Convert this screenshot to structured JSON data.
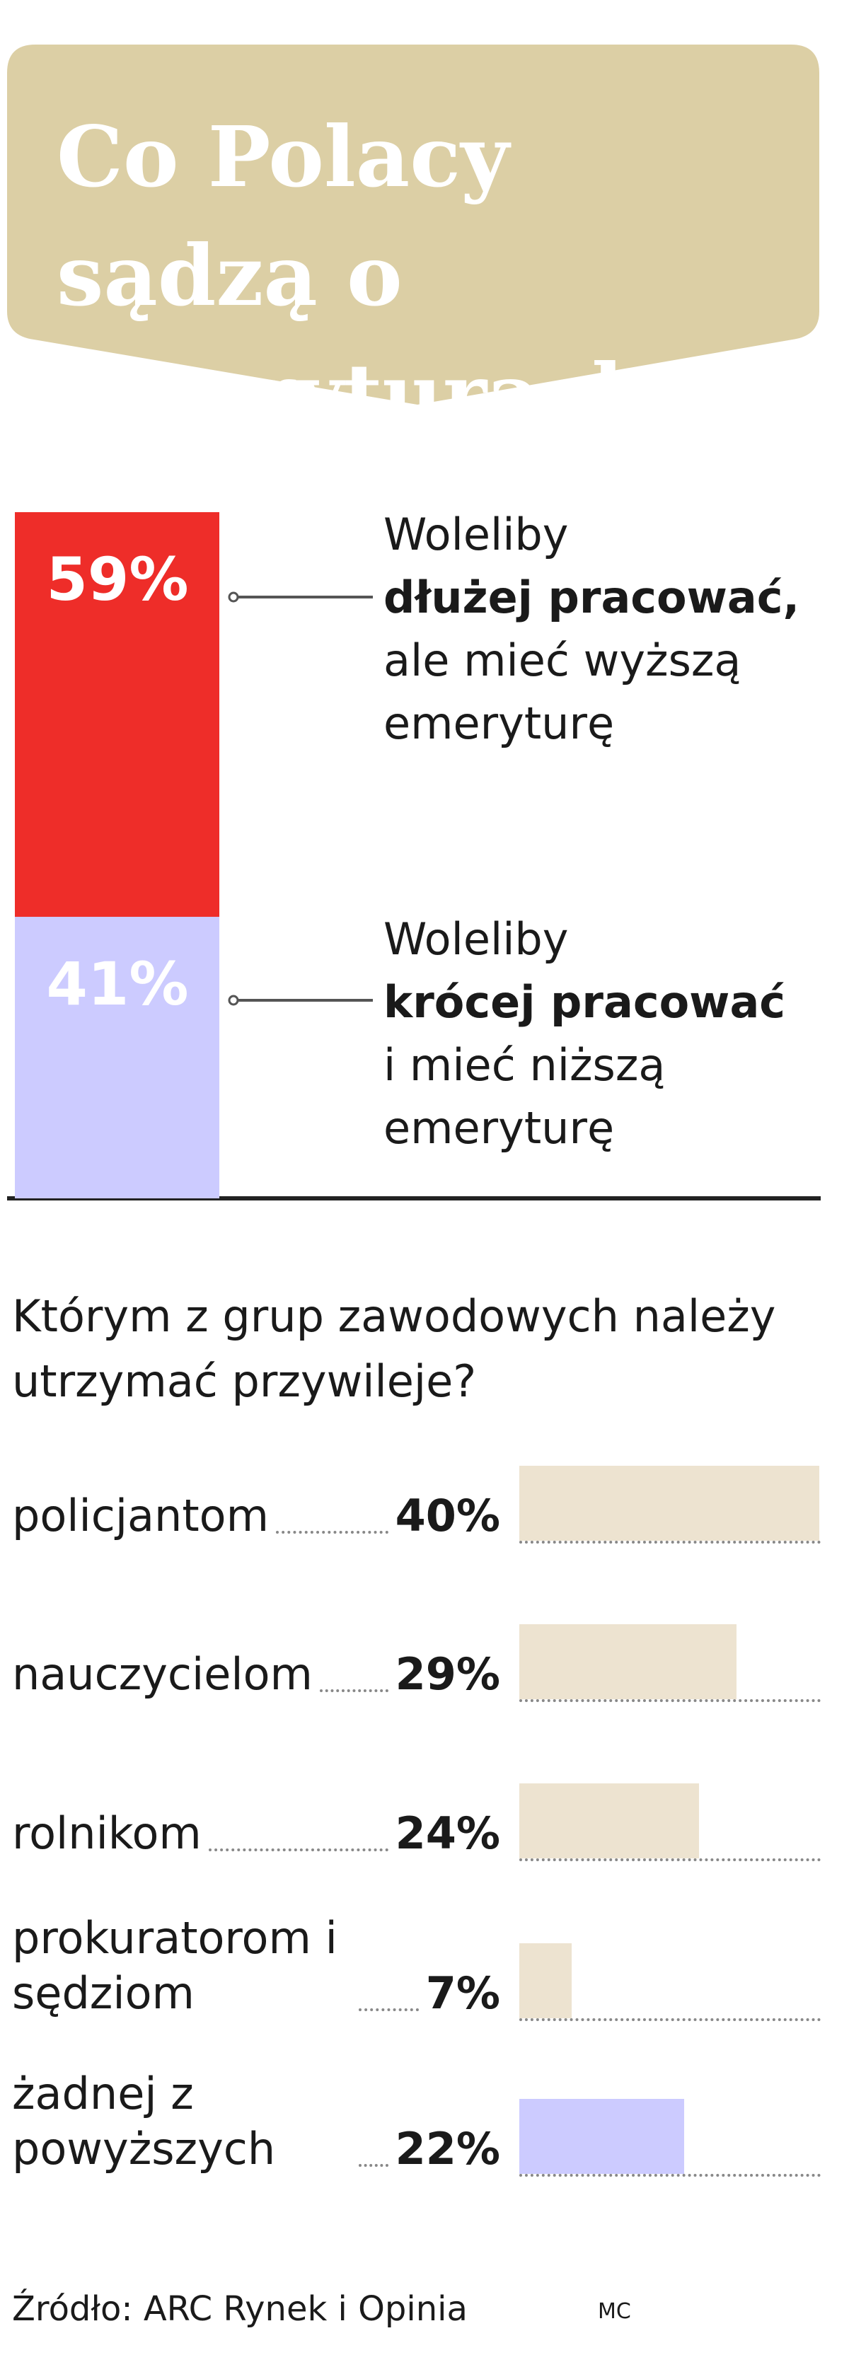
{
  "header": {
    "title": "Co Polacy sądzą o emeryturach"
  },
  "chart_data": [
    {
      "type": "stacked_bar",
      "series": [
        {
          "label_pre": "Woleliby",
          "label_bold": "dłużej pracować,",
          "label_post": "ale mieć wyższą emeryturę",
          "color": "#ee2d29",
          "values": [
            59
          ],
          "value_labels": [
            "59%"
          ]
        },
        {
          "label_pre": "Woleliby",
          "label_bold": "krócej pracować",
          "label_post": "i mieć niższą emeryturę",
          "color": "#cccbff",
          "values": [
            41
          ],
          "value_labels": [
            "41%"
          ]
        }
      ]
    },
    {
      "type": "hbar",
      "title": "Którym z grup zawodowych należy utrzymać przywileje?",
      "categories": [
        "policjantom",
        "nauczycielom",
        "rolnikom",
        "prokuratorom i sędziom",
        "żadnej z powyższych"
      ],
      "values": [
        40,
        29,
        24,
        7,
        22
      ],
      "value_labels": [
        "40%",
        "29%",
        "24%",
        "7%",
        "22%"
      ],
      "colors": [
        "#ede3d0",
        "#ede3d0",
        "#ede3d0",
        "#ede3d0",
        "#cccbff"
      ]
    }
  ],
  "footer": {
    "source": "Źródło: ARC Rynek i Opinia",
    "credit": "MC"
  }
}
